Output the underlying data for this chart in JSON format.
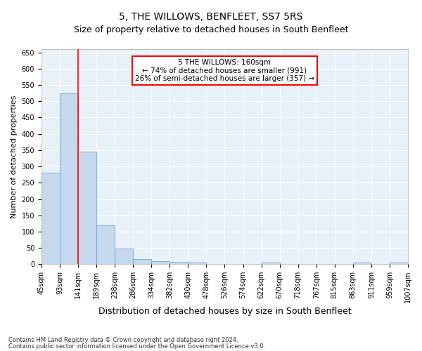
{
  "title": "5, THE WILLOWS, BENFLEET, SS7 5RS",
  "subtitle": "Size of property relative to detached houses in South Benfleet",
  "xlabel": "Distribution of detached houses by size in South Benfleet",
  "ylabel": "Number of detached properties",
  "bar_values": [
    280,
    525,
    345,
    120,
    48,
    16,
    10,
    8,
    5,
    0,
    0,
    0,
    5,
    0,
    0,
    0,
    0,
    5,
    0,
    5
  ],
  "bin_labels": [
    "45sqm",
    "93sqm",
    "141sqm",
    "189sqm",
    "238sqm",
    "286sqm",
    "334sqm",
    "382sqm",
    "430sqm",
    "478sqm",
    "526sqm",
    "574sqm",
    "622sqm",
    "670sqm",
    "718sqm",
    "767sqm",
    "815sqm",
    "863sqm",
    "911sqm",
    "959sqm",
    "1007sqm"
  ],
  "bar_color": "#c5d8ed",
  "bar_edge_color": "#5b9bd5",
  "red_line_x": 1.5,
  "annotation_text": "5 THE WILLOWS: 160sqm\n← 74% of detached houses are smaller (991)\n26% of semi-detached houses are larger (357) →",
  "annotation_box_facecolor": "white",
  "annotation_box_edgecolor": "red",
  "ylim": [
    0,
    660
  ],
  "yticks": [
    0,
    50,
    100,
    150,
    200,
    250,
    300,
    350,
    400,
    450,
    500,
    550,
    600,
    650
  ],
  "footer1": "Contains HM Land Registry data © Crown copyright and database right 2024.",
  "footer2": "Contains public sector information licensed under the Open Government Licence v3.0.",
  "bg_color": "#e8f0f8",
  "grid_color": "#ffffff",
  "title_fontsize": 10,
  "subtitle_fontsize": 9,
  "tick_fontsize": 7,
  "ylabel_fontsize": 8,
  "xlabel_fontsize": 9,
  "annotation_fontsize": 7.5,
  "footer_fontsize": 6
}
